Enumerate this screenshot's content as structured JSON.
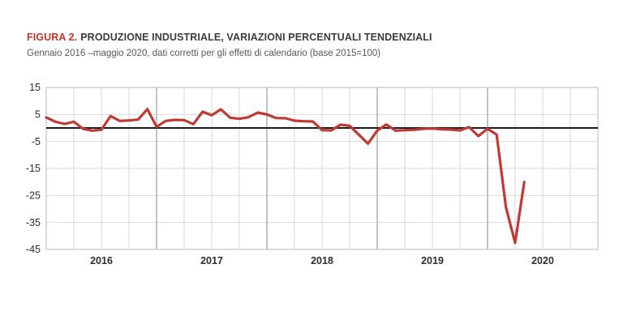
{
  "figure": {
    "title_prefix": "FIGURA 2.",
    "title": "PRODUZIONE INDUSTRIALE, VARIAZIONI PERCENTUALI TENDENZIALI",
    "subtitle": "Gennaio 2016 –maggio 2020, dati corretti per gli effetti di calendario (base 2015=100)"
  },
  "chart_data": {
    "type": "line",
    "title": "Produzione industriale, variazioni percentuali tendenziali",
    "xlabel": "",
    "ylabel": "",
    "legend": "none",
    "grid": "horizontal every 10 units; vertical quarterly, darker at year boundaries",
    "ylim": [
      -45,
      15
    ],
    "y_ticks": [
      15,
      5,
      -5,
      -15,
      -25,
      -35,
      -45
    ],
    "x_tick_labels": [
      "2016",
      "2017",
      "2018",
      "2019",
      "2020"
    ],
    "x_domain_months": 60,
    "zero_line": true,
    "x_months": [
      "2016-01",
      "2016-02",
      "2016-03",
      "2016-04",
      "2016-05",
      "2016-06",
      "2016-07",
      "2016-08",
      "2016-09",
      "2016-10",
      "2016-11",
      "2016-12",
      "2017-01",
      "2017-02",
      "2017-03",
      "2017-04",
      "2017-05",
      "2017-06",
      "2017-07",
      "2017-08",
      "2017-09",
      "2017-10",
      "2017-11",
      "2017-12",
      "2018-01",
      "2018-02",
      "2018-03",
      "2018-04",
      "2018-05",
      "2018-06",
      "2018-07",
      "2018-08",
      "2018-09",
      "2018-10",
      "2018-11",
      "2018-12",
      "2019-01",
      "2019-02",
      "2019-03",
      "2019-04",
      "2019-05",
      "2019-06",
      "2019-07",
      "2019-08",
      "2019-09",
      "2019-10",
      "2019-11",
      "2019-12",
      "2020-01",
      "2020-02",
      "2020-03",
      "2020-04",
      "2020-05"
    ],
    "series": [
      {
        "name": "Variazione percentuale tendenziale",
        "values": [
          3.9,
          2.3,
          1.5,
          2.3,
          -0.3,
          -1.0,
          -0.7,
          4.4,
          2.6,
          2.8,
          3.1,
          7.0,
          0.4,
          2.6,
          3.0,
          2.9,
          1.4,
          6.0,
          4.7,
          6.9,
          3.8,
          3.4,
          4.0,
          5.7,
          5.0,
          3.7,
          3.6,
          2.7,
          2.5,
          2.4,
          -0.8,
          -0.9,
          1.2,
          0.8,
          -2.5,
          -5.8,
          -1.0,
          1.3,
          -1.0,
          -0.8,
          -0.7,
          -0.3,
          -0.2,
          -0.5,
          -0.6,
          -0.9,
          0.3,
          -3.0,
          -0.3,
          -2.5,
          -29.4,
          -42.5,
          -20.0
        ]
      }
    ],
    "colors": {
      "line": "#bf3a35",
      "title_accent": "#c5342b",
      "text_dark": "#3c3c3b",
      "text_gray": "#58585a",
      "axis_label": "#2e2e2d",
      "grid": "#d9d9d9",
      "grid_year": "#b3b3b3",
      "plot_border": "#c4c4c4",
      "zero_line": "#1d1d1b",
      "background": "#ffffff"
    }
  }
}
